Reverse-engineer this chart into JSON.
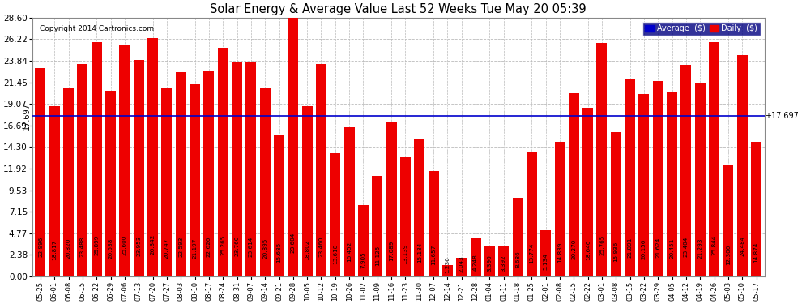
{
  "title": "Solar Energy & Average Value Last 52 Weeks Tue May 20 05:39",
  "copyright": "Copyright 2014 Cartronics.com",
  "average_line": 17.697,
  "average_label": "17.697",
  "bar_color": "#EE0000",
  "average_line_color": "#0000CC",
  "background_color": "#FFFFFF",
  "grid_color": "#BBBBBB",
  "ylim": [
    0.0,
    28.6
  ],
  "yticks": [
    0.0,
    2.38,
    4.77,
    7.15,
    9.53,
    11.92,
    14.3,
    16.69,
    19.07,
    21.45,
    23.84,
    26.22,
    28.6
  ],
  "legend_avg_color": "#0000CC",
  "legend_daily_color": "#EE0000",
  "dates": [
    "05-25",
    "06-01",
    "06-08",
    "06-15",
    "06-22",
    "06-29",
    "07-06",
    "07-13",
    "07-20",
    "07-27",
    "08-03",
    "08-10",
    "08-17",
    "08-24",
    "08-31",
    "09-07",
    "09-14",
    "09-21",
    "09-28",
    "10-05",
    "10-12",
    "10-19",
    "10-26",
    "11-02",
    "11-09",
    "11-16",
    "11-23",
    "11-30",
    "12-07",
    "12-14",
    "12-21",
    "12-28",
    "01-04",
    "01-11",
    "01-18",
    "01-25",
    "02-01",
    "02-08",
    "02-15",
    "02-22",
    "03-01",
    "03-08",
    "03-15",
    "03-22",
    "03-29",
    "04-05",
    "04-12",
    "04-19",
    "04-26",
    "05-03",
    "05-10",
    "05-17"
  ],
  "values": [
    22.996,
    18.817,
    20.82,
    23.488,
    25.899,
    20.538,
    25.6,
    23.953,
    26.342,
    20.747,
    22.593,
    21.197,
    22.626,
    25.265,
    23.76,
    23.614,
    20.895,
    15.685,
    28.604,
    18.802,
    23.46,
    13.618,
    16.452,
    7.905,
    11.125,
    17.089,
    13.139,
    15.134,
    11.657,
    1.236,
    2.043,
    4.248,
    3.39,
    3.392,
    8.686,
    13.774,
    5.134,
    14.839,
    20.27,
    18.64,
    25.765,
    15.936,
    21.891,
    20.156,
    21.624,
    20.451,
    23.404,
    21.293,
    25.844,
    12.306,
    24.484,
    14.874
  ],
  "figsize": [
    9.9,
    3.75
  ],
  "dpi": 100
}
